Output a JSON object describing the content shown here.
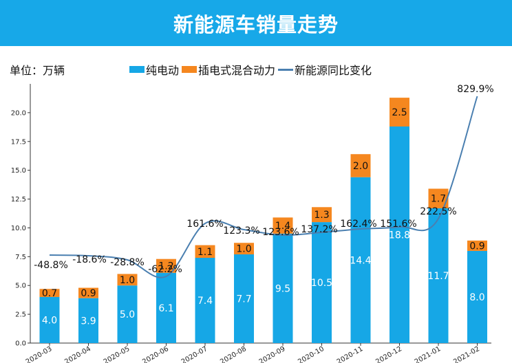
{
  "banner": {
    "title": "新能源车销量走势"
  },
  "unit_label": "单位：万辆",
  "colors": {
    "banner": "#17a8e8",
    "bev": "#16a7e6",
    "phev": "#f5871f",
    "line": "#4a7fb0"
  },
  "chart_data": {
    "type": "bar",
    "stacked": true,
    "categories": [
      "2020-03",
      "2020-04",
      "2020-05",
      "2020-06",
      "2020-07",
      "2020-08",
      "2020-09",
      "2020-10",
      "2020-11",
      "2020-12",
      "2021-01",
      "2021-02"
    ],
    "series": [
      {
        "name": "纯电动",
        "values": [
          4.0,
          3.9,
          5.0,
          6.1,
          7.4,
          7.7,
          9.5,
          10.5,
          14.4,
          18.8,
          11.7,
          8.0
        ]
      },
      {
        "name": "插电式混合动力",
        "values": [
          0.7,
          0.9,
          1.0,
          1.2,
          1.1,
          1.0,
          1.4,
          1.3,
          2.0,
          2.5,
          1.7,
          0.9
        ]
      }
    ],
    "line_series": {
      "name": "新能源同比变化",
      "labels": [
        "-48.8%",
        "-18.6%",
        "-28.8%",
        "-62.2%",
        "161.6%",
        "123.3%",
        "123.6%",
        "137.2%",
        "162.4%",
        "151.6%",
        "222.5%",
        "829.9%"
      ]
    },
    "ylim": [
      0,
      22.5
    ],
    "yticks": [
      "0.0",
      "2.5",
      "5.0",
      "7.5",
      "10.0",
      "12.5",
      "15.0",
      "17.5",
      "20.0"
    ],
    "legend_position": "top"
  }
}
